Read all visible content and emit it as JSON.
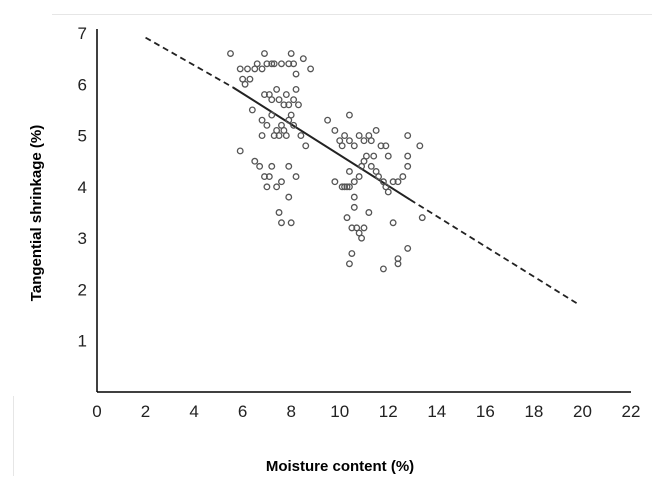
{
  "chart_data": {
    "type": "scatter",
    "title": "",
    "xlabel": "Moisture content (%)",
    "ylabel": "Tangential shrinkage (%)",
    "xlim": [
      0,
      22
    ],
    "ylim": [
      0,
      7
    ],
    "xticks": [
      0,
      2,
      4,
      6,
      8,
      10,
      12,
      14,
      16,
      18,
      20,
      22
    ],
    "yticks": [
      1,
      2,
      3,
      4,
      5,
      6,
      7
    ],
    "grid": false,
    "legend": "none",
    "colors": {
      "marker": "#555555",
      "line": "#222222",
      "axis": "#000000"
    },
    "points": [
      [
        5.5,
        6.6
      ],
      [
        5.9,
        6.3
      ],
      [
        6.0,
        6.1
      ],
      [
        6.1,
        6.0
      ],
      [
        6.2,
        6.3
      ],
      [
        6.3,
        6.1
      ],
      [
        6.5,
        6.3
      ],
      [
        6.6,
        6.4
      ],
      [
        6.8,
        6.3
      ],
      [
        6.9,
        6.6
      ],
      [
        7.0,
        6.4
      ],
      [
        7.2,
        6.4
      ],
      [
        7.3,
        6.4
      ],
      [
        7.6,
        6.4
      ],
      [
        7.9,
        6.4
      ],
      [
        8.0,
        6.6
      ],
      [
        8.1,
        6.4
      ],
      [
        8.2,
        6.2
      ],
      [
        8.5,
        6.5
      ],
      [
        8.8,
        6.3
      ],
      [
        6.9,
        5.8
      ],
      [
        7.1,
        5.8
      ],
      [
        7.2,
        5.7
      ],
      [
        7.4,
        5.9
      ],
      [
        7.5,
        5.7
      ],
      [
        7.7,
        5.6
      ],
      [
        7.8,
        5.8
      ],
      [
        7.9,
        5.6
      ],
      [
        8.1,
        5.7
      ],
      [
        8.2,
        5.9
      ],
      [
        8.3,
        5.6
      ],
      [
        6.4,
        5.5
      ],
      [
        6.8,
        5.3
      ],
      [
        7.0,
        5.2
      ],
      [
        7.2,
        5.4
      ],
      [
        7.4,
        5.1
      ],
      [
        7.6,
        5.2
      ],
      [
        7.8,
        5.0
      ],
      [
        7.9,
        5.3
      ],
      [
        8.0,
        5.4
      ],
      [
        8.1,
        5.2
      ],
      [
        8.4,
        5.0
      ],
      [
        8.6,
        4.8
      ],
      [
        7.3,
        5.0
      ],
      [
        7.5,
        5.0
      ],
      [
        6.8,
        5.0
      ],
      [
        7.7,
        5.1
      ],
      [
        5.9,
        4.7
      ],
      [
        6.5,
        4.5
      ],
      [
        6.7,
        4.4
      ],
      [
        6.9,
        4.2
      ],
      [
        7.0,
        4.0
      ],
      [
        7.1,
        4.2
      ],
      [
        7.2,
        4.4
      ],
      [
        7.4,
        4.0
      ],
      [
        7.6,
        4.1
      ],
      [
        7.9,
        4.4
      ],
      [
        8.2,
        4.2
      ],
      [
        7.5,
        3.5
      ],
      [
        7.6,
        3.3
      ],
      [
        7.9,
        3.8
      ],
      [
        8.0,
        3.3
      ],
      [
        9.5,
        5.3
      ],
      [
        9.8,
        5.1
      ],
      [
        10.0,
        4.9
      ],
      [
        10.1,
        4.8
      ],
      [
        10.2,
        5.0
      ],
      [
        10.4,
        4.9
      ],
      [
        10.6,
        4.8
      ],
      [
        10.8,
        5.0
      ],
      [
        11.0,
        4.9
      ],
      [
        11.2,
        5.0
      ],
      [
        11.3,
        4.9
      ],
      [
        11.5,
        5.1
      ],
      [
        11.7,
        4.8
      ],
      [
        11.9,
        4.8
      ],
      [
        12.0,
        4.6
      ],
      [
        10.4,
        5.4
      ],
      [
        9.8,
        4.1
      ],
      [
        10.1,
        4.0
      ],
      [
        10.2,
        4.0
      ],
      [
        10.3,
        4.0
      ],
      [
        10.4,
        4.0
      ],
      [
        10.4,
        4.3
      ],
      [
        10.6,
        4.1
      ],
      [
        10.8,
        4.2
      ],
      [
        10.9,
        4.4
      ],
      [
        11.0,
        4.5
      ],
      [
        11.1,
        4.6
      ],
      [
        11.3,
        4.4
      ],
      [
        11.4,
        4.6
      ],
      [
        11.5,
        4.3
      ],
      [
        11.6,
        4.2
      ],
      [
        11.8,
        4.1
      ],
      [
        11.9,
        4.0
      ],
      [
        12.0,
        3.9
      ],
      [
        12.2,
        4.1
      ],
      [
        12.4,
        4.1
      ],
      [
        12.6,
        4.2
      ],
      [
        12.8,
        4.4
      ],
      [
        12.8,
        4.6
      ],
      [
        12.8,
        5.0
      ],
      [
        13.3,
        4.8
      ],
      [
        10.3,
        3.4
      ],
      [
        10.5,
        3.2
      ],
      [
        10.6,
        3.6
      ],
      [
        10.7,
        3.2
      ],
      [
        10.8,
        3.1
      ],
      [
        10.9,
        3.0
      ],
      [
        10.5,
        2.7
      ],
      [
        10.6,
        3.8
      ],
      [
        10.4,
        2.5
      ],
      [
        11.0,
        3.2
      ],
      [
        11.2,
        3.5
      ],
      [
        11.8,
        2.4
      ],
      [
        12.2,
        3.3
      ],
      [
        12.4,
        2.6
      ],
      [
        12.4,
        2.5
      ],
      [
        12.8,
        2.8
      ],
      [
        13.4,
        3.4
      ]
    ],
    "regression": {
      "solid": {
        "x": [
          5.6,
          12.9
        ],
        "y": [
          5.94,
          3.75
        ]
      },
      "dashed": [
        {
          "x": [
            2.0,
            5.6
          ],
          "y": [
            6.91,
            5.94
          ]
        },
        {
          "x": [
            12.9,
            19.8
          ],
          "y": [
            3.75,
            1.72
          ]
        }
      ]
    }
  }
}
